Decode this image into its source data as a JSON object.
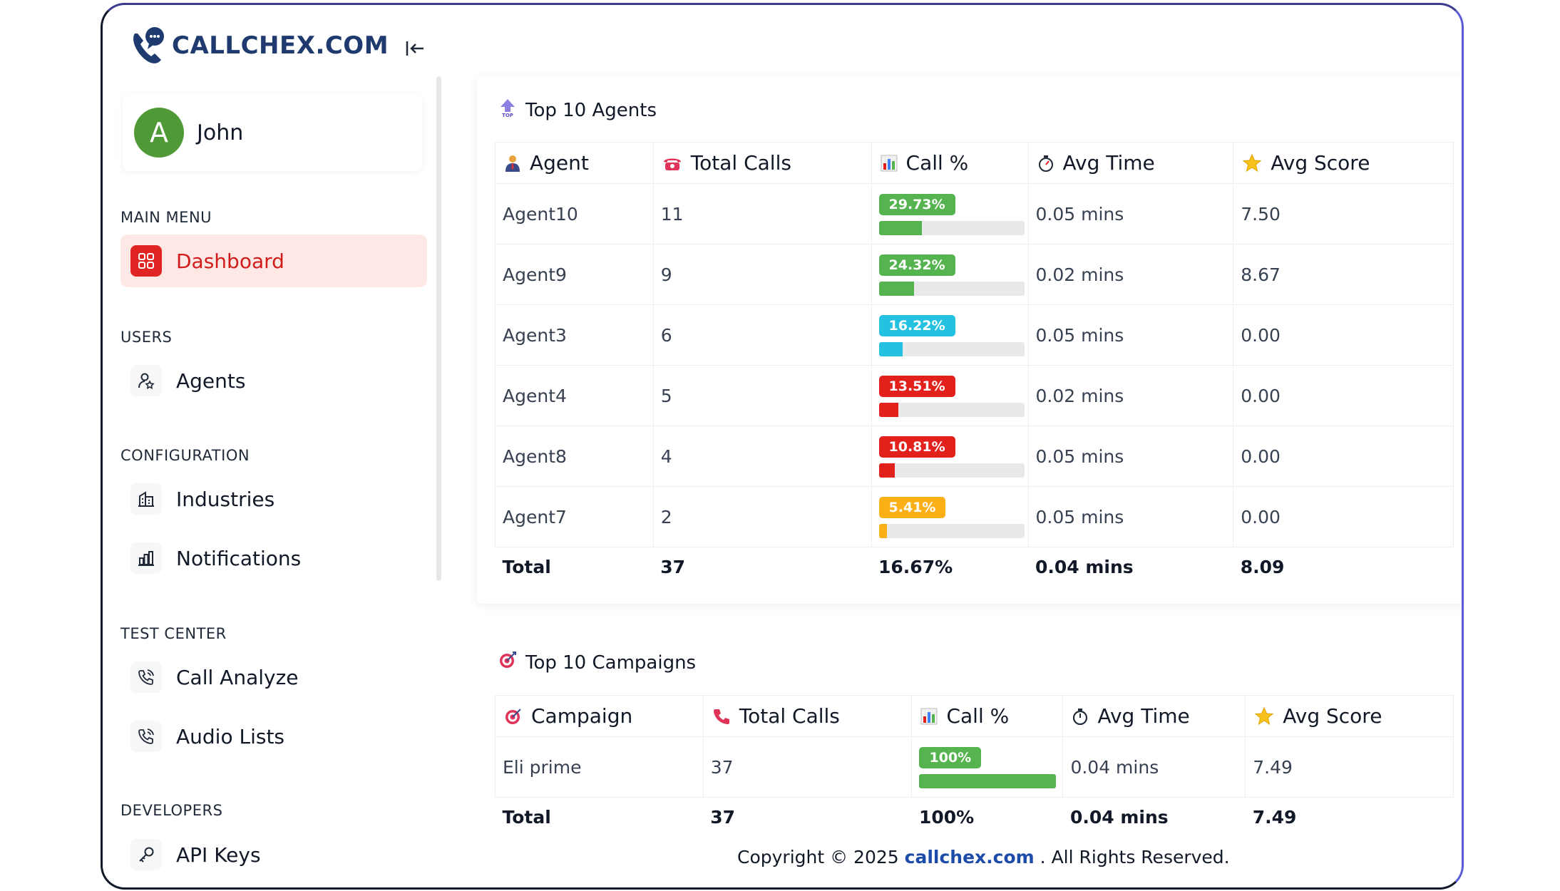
{
  "brand": {
    "name": "CALLCHEX.COM"
  },
  "user": {
    "initial": "A",
    "name": "John"
  },
  "sidebar": {
    "sections": [
      {
        "label": "MAIN MENU",
        "items": [
          {
            "label": "Dashboard",
            "icon": "dashboard-grid-icon",
            "active": true
          }
        ]
      },
      {
        "label": "USERS",
        "items": [
          {
            "label": "Agents",
            "icon": "user-star-icon"
          }
        ]
      },
      {
        "label": "CONFIGURATION",
        "items": [
          {
            "label": "Industries",
            "icon": "building-icon"
          },
          {
            "label": "Notifications",
            "icon": "bar-chart-icon"
          }
        ]
      },
      {
        "label": "TEST CENTER",
        "items": [
          {
            "label": "Call Analyze",
            "icon": "phone-call-icon"
          },
          {
            "label": "Audio Lists",
            "icon": "phone-call-icon"
          }
        ]
      },
      {
        "label": "DEVELOPERS",
        "items": [
          {
            "label": "API Keys",
            "icon": "key-icon"
          }
        ]
      }
    ]
  },
  "agents_table": {
    "title": "Top 10 Agents",
    "headers": [
      "Agent",
      "Total Calls",
      "Call %",
      "Avg Time",
      "Avg Score"
    ],
    "rows": [
      {
        "agent": "Agent10",
        "calls": "11",
        "pct_label": "29.73%",
        "pct": 29.73,
        "color": "#56b450",
        "time": "0.05 mins",
        "score": "7.50"
      },
      {
        "agent": "Agent9",
        "calls": "9",
        "pct_label": "24.32%",
        "pct": 24.32,
        "color": "#56b450",
        "time": "0.02 mins",
        "score": "8.67"
      },
      {
        "agent": "Agent3",
        "calls": "6",
        "pct_label": "16.22%",
        "pct": 16.22,
        "color": "#24c1e0",
        "time": "0.05 mins",
        "score": "0.00"
      },
      {
        "agent": "Agent4",
        "calls": "5",
        "pct_label": "13.51%",
        "pct": 13.51,
        "color": "#e3211c",
        "time": "0.02 mins",
        "score": "0.00"
      },
      {
        "agent": "Agent8",
        "calls": "4",
        "pct_label": "10.81%",
        "pct": 10.81,
        "color": "#e3211c",
        "time": "0.05 mins",
        "score": "0.00"
      },
      {
        "agent": "Agent7",
        "calls": "2",
        "pct_label": "5.41%",
        "pct": 5.41,
        "color": "#fbb017",
        "time": "0.05 mins",
        "score": "0.00"
      }
    ],
    "total": {
      "label": "Total",
      "calls": "37",
      "pct": "16.67%",
      "time": "0.04 mins",
      "score": "8.09"
    }
  },
  "campaigns_table": {
    "title": "Top 10 Campaigns",
    "headers": [
      "Campaign",
      "Total Calls",
      "Call %",
      "Avg Time",
      "Avg Score"
    ],
    "rows": [
      {
        "campaign": "Eli prime",
        "calls": "37",
        "pct_label": "100%",
        "pct": 100,
        "color": "#56b450",
        "time": "0.04 mins",
        "score": "7.49"
      }
    ],
    "total": {
      "label": "Total",
      "calls": "37",
      "pct": "100%",
      "time": "0.04 mins",
      "score": "7.49"
    }
  },
  "footer": {
    "prefix": "Copyright © 2025",
    "link": "callchex.com",
    "suffix": ". All Rights Reserved."
  }
}
